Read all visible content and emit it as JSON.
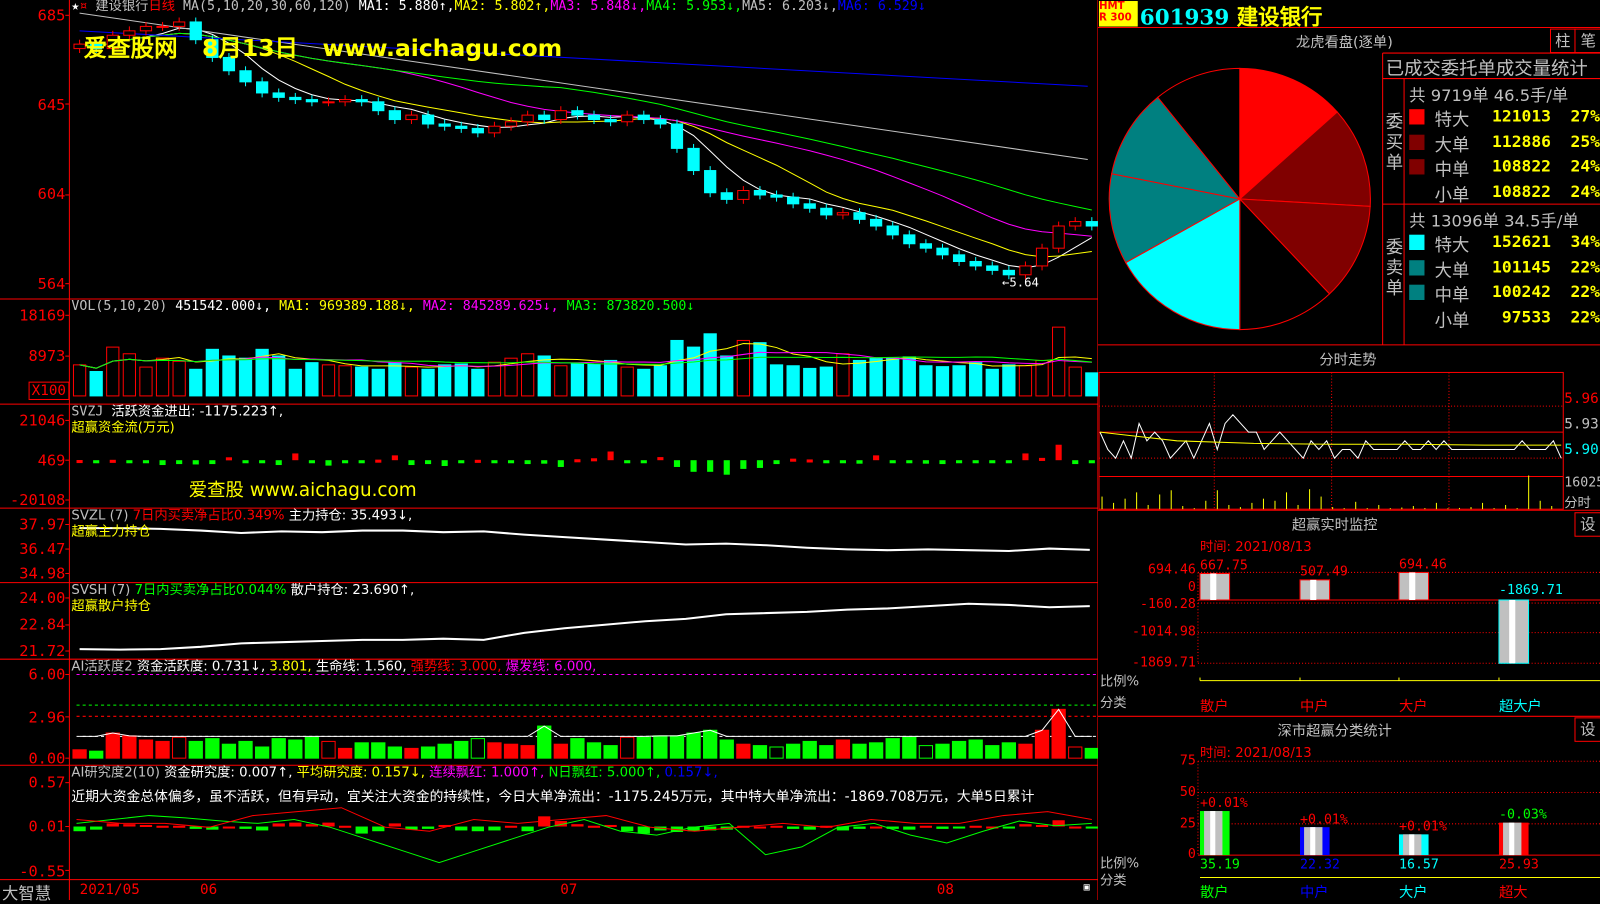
{
  "header": {
    "stock": "建设银行",
    "period": "日线",
    "ma_label": "MA(5,10,20,30,60,120)",
    "ma1": "MA1: 5.880↑,",
    "ma2": "MA2: 5.802↑,",
    "ma3": "MA3: 5.848↓,",
    "ma4": "MA4: 5.953↓,",
    "ma5": "MA5: 6.203↓,",
    "ma6": "MA6: 6.529↓"
  },
  "watermark": {
    "title": "爱查股网   8月13日   www.aichagu.com",
    "sub": "爱查股 www.aichagu.com"
  },
  "colors": {
    "up": "#ff0000",
    "down": "#00ffff",
    "ma1": "#ffffff",
    "ma2": "#ffff00",
    "ma3": "#ff00ff",
    "ma4": "#00ff00",
    "ma5": "#c0c0c0",
    "ma6": "#0000ff",
    "border": "#ff0000"
  },
  "main_axis": {
    "labels": [
      "685",
      "645",
      "604",
      "564"
    ],
    "values": [
      6.85,
      6.45,
      6.04,
      5.64
    ],
    "low_marker": "←5.64"
  },
  "candles": {
    "close": [
      6.72,
      6.7,
      6.76,
      6.78,
      6.8,
      6.8,
      6.82,
      6.74,
      6.66,
      6.6,
      6.55,
      6.5,
      6.48,
      6.47,
      6.46,
      6.46,
      6.47,
      6.46,
      6.42,
      6.38,
      6.4,
      6.36,
      6.35,
      6.34,
      6.32,
      6.35,
      6.37,
      6.4,
      6.38,
      6.42,
      6.4,
      6.38,
      6.37,
      6.4,
      6.38,
      6.36,
      6.25,
      6.15,
      6.05,
      6.02,
      6.06,
      6.04,
      6.03,
      6.0,
      5.98,
      5.95,
      5.96,
      5.93,
      5.9,
      5.86,
      5.82,
      5.8,
      5.77,
      5.74,
      5.72,
      5.7,
      5.68,
      5.72,
      5.8,
      5.9,
      5.92,
      5.9
    ],
    "ma60": [
      6.86,
      6.2
    ],
    "ma120": [
      6.78,
      6.53
    ]
  },
  "vol": {
    "label": "VOL(5,10,20)",
    "value": "451542.000↓,",
    "ma1": "MA1: 969389.188↓,",
    "ma2": "MA2: 845289.625↓,",
    "ma3": "MA3: 873820.500↓",
    "axis": [
      "18169",
      "8973"
    ],
    "axis_values": [
      18169,
      8973
    ],
    "unit": "X100",
    "values": [
      7000,
      5500,
      11000,
      9500,
      6500,
      8500,
      7800,
      6000,
      10500,
      9000,
      8500,
      10500,
      9000,
      6000,
      7500,
      7000,
      6800,
      6500,
      6000,
      7500,
      6500,
      6000,
      7000,
      7200,
      6000,
      7600,
      8500,
      9500,
      9000,
      6800,
      7200,
      7200,
      8000,
      6500,
      6000,
      6800,
      12500,
      11000,
      14000,
      9000,
      12500,
      12000,
      7000,
      6800,
      6200,
      6500,
      9500,
      8000,
      8600,
      8500,
      8800,
      6800,
      6600,
      6800,
      7500,
      6000,
      7000,
      6800,
      8000,
      15500,
      6500,
      5200
    ]
  },
  "svzj": {
    "label": "SVZJ",
    "text": "活跃资金进出: -1175.223↑,",
    "sub": "超赢资金流(万元)",
    "axis": [
      "21046",
      "469",
      "-20108"
    ],
    "axis_values": [
      21046,
      469,
      -20108
    ],
    "values": [
      100,
      -500,
      200,
      -1500,
      -800,
      -2500,
      -2000,
      -2200,
      -2000,
      1500,
      -1500,
      -1000,
      -2500,
      3500,
      -500,
      -2800,
      -500,
      -1500,
      300,
      2500,
      -2500,
      -2000,
      -3000,
      -1500,
      200,
      -1000,
      -1500,
      -2000,
      -1800,
      -3500,
      500,
      1000,
      4500,
      -800,
      -1000,
      1600,
      -3500,
      -6000,
      -6000,
      -7500,
      -4500,
      -4000,
      -2000,
      800,
      400,
      -800,
      -1500,
      -1800,
      2500,
      -400,
      -800,
      -1800,
      -2000,
      -800,
      -500,
      -300,
      -1000,
      3500,
      1200,
      8000,
      -2000,
      -1500
    ]
  },
  "svzl": {
    "label": "SVZL (7)",
    "ratio": "7日内买卖净占比0.349%",
    "hold": "主力持仓: 35.493↓,",
    "sub": "超赢主力持仓",
    "axis": [
      "37.97",
      "36.47",
      "34.98"
    ],
    "axis_values": [
      37.97,
      36.47,
      34.98
    ],
    "line": [
      37.75,
      37.75,
      37.7,
      37.6,
      37.45,
      37.55,
      37.5,
      37.6,
      37.6,
      37.5,
      37.55,
      37.35,
      37.2,
      37.05,
      36.9,
      36.75,
      36.8,
      36.7,
      36.55,
      36.45,
      36.4,
      36.45,
      36.4,
      36.35,
      36.5,
      36.42
    ]
  },
  "svsh": {
    "label": "SVSH (7)",
    "ratio": "7日内买卖净占比0.044%",
    "hold": "散户持仓: 23.690↑,",
    "sub": "超赢散户持仓",
    "axis": [
      "24.00",
      "22.84",
      "21.72"
    ],
    "axis_values": [
      24.0,
      22.84,
      21.72
    ],
    "line": [
      21.8,
      21.78,
      21.8,
      21.9,
      22.05,
      22.1,
      22.15,
      22.2,
      22.2,
      22.25,
      22.2,
      22.5,
      22.7,
      22.85,
      23.0,
      23.1,
      23.3,
      23.35,
      23.4,
      23.5,
      23.55,
      23.65,
      23.75,
      23.7,
      23.6,
      23.65
    ]
  },
  "active": {
    "label": "AI活跃度2",
    "text": "资金活跃度: 0.731↓,",
    "v2": "3.801,",
    "life": "生命线: 1.560,",
    "strong": "强势线: 3.000,",
    "burst": "爆发线: 6.000,",
    "axis": [
      "6.00",
      "2.96",
      "0.00"
    ],
    "axis_values": [
      6.0,
      2.96,
      0.0
    ],
    "levels": {
      "burst": 6.0,
      "green": 3.801,
      "strong": 3.0,
      "life": 1.56
    },
    "values": [
      0.6,
      0.5,
      1.8,
      1.6,
      1.3,
      1.2,
      1.5,
      1.2,
      1.4,
      1.0,
      1.2,
      0.8,
      1.4,
      1.3,
      1.5,
      1.2,
      0.7,
      1.1,
      1.1,
      0.8,
      0.7,
      0.8,
      1.0,
      1.2,
      1.4,
      1.1,
      1.0,
      0.9,
      2.3,
      1.0,
      1.4,
      1.1,
      0.9,
      1.5,
      1.5,
      1.6,
      1.6,
      1.8,
      2.0,
      1.3,
      1.0,
      0.9,
      0.8,
      1.0,
      1.2,
      0.9,
      1.3,
      1.0,
      1.1,
      1.4,
      1.5,
      0.9,
      1.0,
      1.2,
      1.3,
      0.9,
      1.1,
      1.0,
      2.0,
      3.5,
      0.8,
      0.7
    ]
  },
  "research": {
    "label": "AI研究度2(10)",
    "text": "资金研究度: 0.007↑,",
    "avg": "平均研究度: 0.157↓,",
    "red": "连续飘红: 1.000↑,",
    "nred": "N日飘红: 5.000↑,",
    "v": "0.157↓,",
    "comment": "近期大资金总体偏多，虽不活跃，但有异动，宜关注大资金的持续性，今日大单净流出：-1175.245万元，其中特大单净流出：-1869.708万元，大单5日累计",
    "axis": [
      "0.57",
      "0.01",
      "-0.55"
    ],
    "axis_values": [
      0.57,
      0.01,
      -0.55
    ],
    "values": [
      -0.05,
      -0.03,
      0.05,
      0.04,
      0.03,
      0.02,
      0.02,
      -0.02,
      -0.03,
      0.01,
      -0.02,
      -0.04,
      0.05,
      0.06,
      0.04,
      0.06,
      0.02,
      -0.08,
      -0.05,
      0.05,
      -0.03,
      -0.02,
      0.03,
      -0.04,
      -0.05,
      -0.04,
      0.02,
      -0.05,
      0.14,
      0.08,
      0.04,
      0.02,
      0.03,
      -0.05,
      -0.08,
      -0.04,
      -0.06,
      -0.05,
      -0.04,
      -0.03,
      0.02,
      0.01,
      0.02,
      -0.02,
      -0.03,
      0.02,
      -0.04,
      -0.02,
      0.01,
      -0.02,
      -0.03,
      0.02,
      -0.02,
      -0.01,
      0.02,
      0.01,
      -0.01,
      0.04,
      0.03,
      0.09,
      0.01,
      -0.01
    ],
    "green_line": [
      0.05,
      0.1,
      0.15,
      0.12,
      0.08,
      0.05,
      0.1,
      0.0,
      -0.15,
      -0.3,
      -0.45,
      -0.3,
      -0.15,
      0.0,
      0.1,
      -0.05,
      -0.1,
      0.0,
      0.05,
      -0.35,
      -0.25,
      0.0,
      0.05,
      -0.1,
      -0.2,
      -0.05,
      0.08,
      0.02,
      0.05
    ],
    "red_line": [
      0.1,
      0.05,
      0.05,
      0.0,
      0.15,
      0.2,
      0.25,
      0.0,
      -0.05,
      0.1,
      0.05,
      0.1,
      0.15,
      0.0,
      -0.05,
      0.0,
      0.05,
      0.0,
      0.1,
      0.05,
      0.05,
      0.15,
      0.2,
      0.1
    ]
  },
  "dates": {
    "brand": "大智慧",
    "labels": [
      "2021/05",
      "06",
      "07",
      "08"
    ]
  },
  "right": {
    "badge": [
      "HMT",
      "R 300"
    ],
    "code": "601939",
    "name": "建设银行",
    "dragon": {
      "title": "龙虎看盘(逐单)",
      "btn1": "柱",
      "btn2": "笔",
      "stats_title": "已成交委托单成交量统计",
      "buy": {
        "side": "委买单",
        "summary": "共 9719单 46.5手/单",
        "rows": [
          {
            "label": "特大",
            "value": 121013,
            "pct": "27%",
            "color": "#ff0000"
          },
          {
            "label": "大单",
            "value": 112886,
            "pct": "25%",
            "color": "#800000"
          },
          {
            "label": "中单",
            "value": 108822,
            "pct": "24%",
            "color": "#800000"
          },
          {
            "label": "小单",
            "value": 108822,
            "pct": "24%",
            "color": "#000000"
          }
        ]
      },
      "sell": {
        "side": "委卖单",
        "summary": "共 13096单 34.5手/单",
        "rows": [
          {
            "label": "特大",
            "value": 152621,
            "pct": "34%",
            "color": "#00ffff"
          },
          {
            "label": "大单",
            "value": 101145,
            "pct": "22%",
            "color": "#008080"
          },
          {
            "label": "中单",
            "value": 100242,
            "pct": "22%",
            "color": "#008080"
          },
          {
            "label": "小单",
            "value": 97533,
            "pct": "22%",
            "color": "#000000"
          }
        ]
      }
    },
    "intraday": {
      "title": "分时走势",
      "axis": [
        "5.96",
        "5.93",
        "5.90"
      ],
      "axis_values": [
        5.96,
        5.93,
        5.9
      ],
      "vol_max": "16025",
      "vol_label": "分时",
      "price": [
        5.93,
        5.91,
        5.9,
        5.92,
        5.9,
        5.94,
        5.92,
        5.93,
        5.92,
        5.9,
        5.91,
        5.92,
        5.9,
        5.92,
        5.94,
        5.91,
        5.94,
        5.95,
        5.94,
        5.93,
        5.93,
        5.91,
        5.92,
        5.93,
        5.92,
        5.91,
        5.9,
        5.92,
        5.91,
        5.92,
        5.9,
        5.91,
        5.91,
        5.9,
        5.92,
        5.91,
        5.91,
        5.91,
        5.91,
        5.92,
        5.91,
        5.91,
        5.92,
        5.91,
        5.92,
        5.91,
        5.91,
        5.91,
        5.91,
        5.91,
        5.91,
        5.91,
        5.91,
        5.91,
        5.92,
        5.91,
        5.91,
        5.91,
        5.92,
        5.9
      ],
      "avg": [
        5.93,
        5.92,
        5.917,
        5.916,
        5.916,
        5.915,
        5.915
      ],
      "volume": [
        6000,
        3000,
        5000,
        8000,
        2000,
        7000,
        9000,
        1500,
        500,
        4000,
        9000,
        2000,
        1000,
        3000,
        5000,
        4000,
        8000,
        2000,
        9500,
        6000,
        1000,
        500,
        3500,
        500,
        2000,
        500,
        800,
        1500,
        500,
        3000,
        400,
        600,
        1000,
        3000,
        500,
        2000,
        500,
        16025,
        4000,
        1500
      ]
    },
    "monitor": {
      "title": "超赢实时监控",
      "btn": "设",
      "time": "时间: 2021/08/13",
      "axis": [
        "694.46",
        "0",
        "-160.28",
        "-1014.98",
        "-1869.71"
      ],
      "ratio": "比例%",
      "cat": "分类",
      "bars": [
        {
          "label": "散户",
          "value": 667.75,
          "text": "667.75"
        },
        {
          "label": "中户",
          "value": 507.49,
          "text": "507.49"
        },
        {
          "label": "大户",
          "value": 694.46,
          "text": "694.46"
        },
        {
          "label": "超大户",
          "value": -1869.71,
          "text": "-1869.71"
        }
      ]
    },
    "sz": {
      "title": "深市超赢分类统计",
      "btn": "设",
      "time": "时间: 2021/08/13",
      "axis": [
        "75",
        "50",
        "25",
        "0"
      ],
      "ratio": "比例%",
      "cat": "分类",
      "bars": [
        {
          "label": "散户",
          "value": 35.19,
          "text": "35.19",
          "chg": "+0.01%",
          "color": "#00ff00"
        },
        {
          "label": "中户",
          "value": 22.32,
          "text": "22.32",
          "chg": "+0.01%",
          "color": "#0000ff"
        },
        {
          "label": "大户",
          "value": 16.57,
          "text": "16.57",
          "chg": "+0.01%",
          "color": "#00ffff"
        },
        {
          "label": "超大",
          "value": 25.93,
          "text": "25.93",
          "chg": "-0.03%",
          "color": "#ff0000"
        }
      ]
    }
  }
}
